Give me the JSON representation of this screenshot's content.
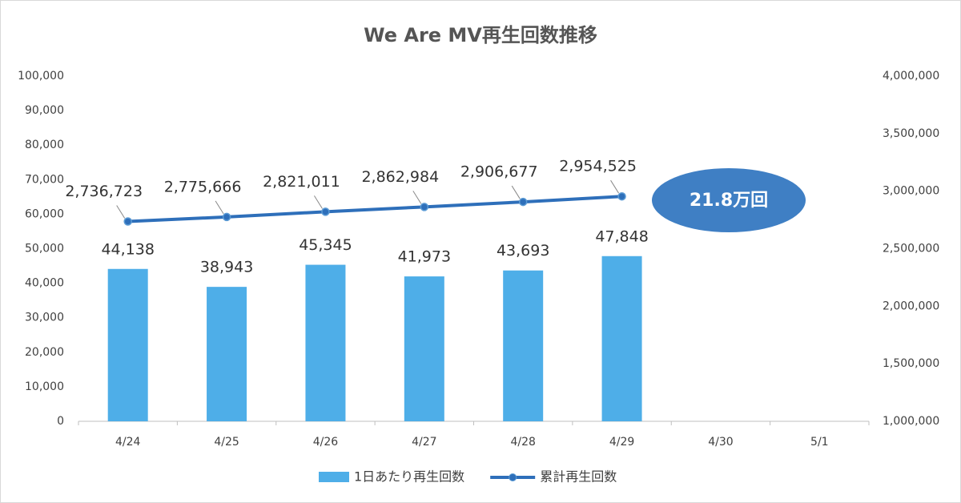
{
  "chart_data": {
    "type": "combo",
    "title": "We Are MV再生回数推移",
    "categories": [
      "4/24",
      "4/25",
      "4/26",
      "4/27",
      "4/28",
      "4/29",
      "4/30",
      "5/1"
    ],
    "series": [
      {
        "name": "1日あたり再生回数",
        "type": "bar",
        "color": "#4eaee8",
        "values": [
          44138,
          38943,
          45345,
          41973,
          43693,
          47848,
          null,
          null
        ],
        "value_labels": [
          "44,138",
          "38,943",
          "45,345",
          "41,973",
          "43,693",
          "47,848",
          null,
          null
        ]
      },
      {
        "name": "累計再生回数",
        "type": "line",
        "axis": "y2",
        "color": "#2e6fba",
        "values": [
          2736723,
          2775666,
          2821011,
          2862984,
          2906677,
          2954525,
          null,
          null
        ],
        "value_labels": [
          "2,736,723",
          "2,775,666",
          "2,821,011",
          "2,862,984",
          "2,906,677",
          "2,954,525",
          null,
          null
        ]
      }
    ],
    "ylim": [
      0,
      100000
    ],
    "yticks": [
      0,
      {
        "value": 10000,
        "label": "10,000"
      },
      {
        "value": 20000,
        "label": "20,000"
      },
      {
        "value": 30000,
        "label": "30,000"
      },
      {
        "value": 40000,
        "label": "40,000"
      },
      {
        "value": 50000,
        "label": "50,000"
      },
      {
        "value": 60000,
        "label": "60,000"
      },
      {
        "value": 70000,
        "label": "70,000"
      },
      {
        "value": 80000,
        "label": "80,000"
      },
      {
        "value": 90000,
        "label": "90,000"
      },
      {
        "value": 100000,
        "label": "100,000"
      }
    ],
    "y2lim": [
      1000000,
      4000000
    ],
    "y2ticks": [
      {
        "value": 1000000,
        "label": "1,000,000"
      },
      {
        "value": 1500000,
        "label": "1,500,000"
      },
      {
        "value": 2000000,
        "label": "2,000,000"
      },
      {
        "value": 2500000,
        "label": "2,500,000"
      },
      {
        "value": 3000000,
        "label": "3,000,000"
      },
      {
        "value": 3500000,
        "label": "3,500,000"
      },
      {
        "value": 4000000,
        "label": "4,000,000"
      }
    ],
    "annotations": [
      {
        "text": "21.8万回"
      }
    ]
  }
}
